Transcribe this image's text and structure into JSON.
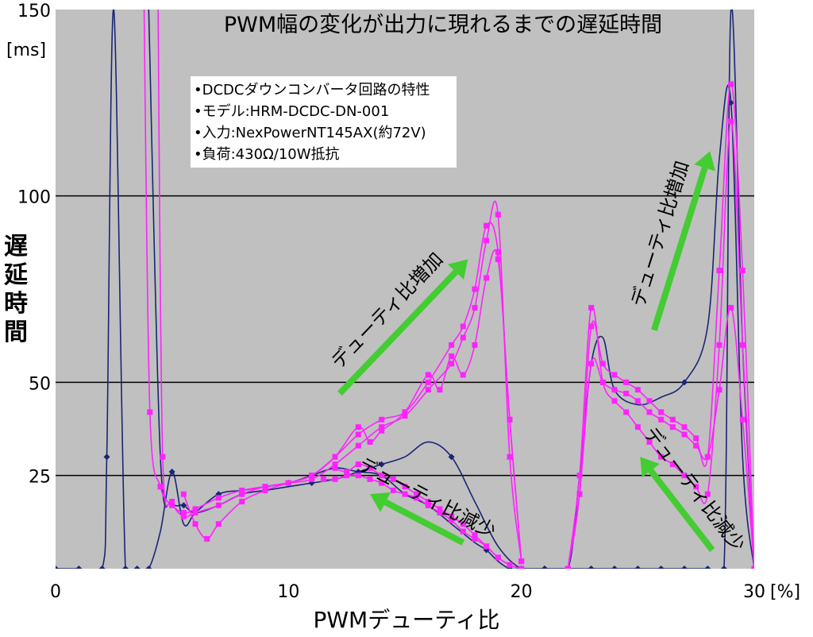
{
  "chart_data": {
    "type": "line",
    "title": "PWM幅の変化が出力に現れるまでの遅延時間",
    "xlabel": "PWMデューティ比",
    "ylabel": "遅延時間",
    "x_unit": "[%]",
    "y_unit": "[ms]",
    "xlim": [
      0,
      30
    ],
    "ylim": [
      0,
      150
    ],
    "x_ticks": [
      0,
      10,
      20,
      30
    ],
    "y_ticks": [
      25,
      50,
      100,
      150
    ],
    "grid": "horizontal",
    "background": "#c0c0c0",
    "colors": {
      "navy": "#1a2575",
      "magenta": "#ff22ff",
      "arrow": "#44cc33"
    },
    "info_box": [
      "•DCDCダウンコンバータ回路の特性",
      "•モデル:HRM-DCDC-DN-001",
      "•入力:NexPowerNT145AX(約72V)",
      "•負荷:430Ω/10W抵抗"
    ],
    "annotations": [
      {
        "text": "デューティ比増加",
        "x_from": 12.2,
        "y_from": 47,
        "x_to": 17.7,
        "y_to": 83
      },
      {
        "text": "デューティ比減少",
        "x_from": 17.5,
        "y_from": 7,
        "x_to": 13.5,
        "y_to": 20
      },
      {
        "text": "デューティ比増加",
        "x_from": 25.7,
        "y_from": 64,
        "x_to": 28.1,
        "y_to": 112
      },
      {
        "text": "デューティ比減少",
        "x_from": 28.2,
        "y_from": 5,
        "x_to": 25.1,
        "y_to": 30
      }
    ],
    "series": [
      {
        "color": "#1a2575",
        "markers": false,
        "x": [
          0,
          1,
          2,
          2.2,
          2.5,
          3,
          3.5,
          4,
          4.5,
          5,
          5.5,
          6,
          7,
          8,
          9,
          10,
          11,
          12,
          13,
          14,
          15,
          16,
          17,
          18,
          18.5,
          19,
          19.5,
          20,
          21,
          22,
          23,
          24,
          25,
          26,
          27,
          28,
          28.7,
          29,
          29.5,
          30
        ],
        "y": [
          0,
          0,
          0,
          30,
          150,
          0,
          0,
          0,
          10,
          26,
          12,
          15,
          20,
          21,
          22,
          23,
          25,
          27,
          26,
          25,
          20,
          17,
          12,
          7,
          5,
          2,
          0,
          0,
          0,
          0,
          0,
          0,
          0,
          0,
          0,
          0,
          0,
          150,
          60,
          0
        ]
      },
      {
        "color": "#1a2575",
        "markers": false,
        "x": [
          4,
          4.5,
          5,
          5.5,
          6,
          7,
          8,
          9,
          10,
          11,
          12,
          13,
          14,
          15,
          16,
          17,
          18,
          19,
          20,
          21,
          22,
          22.5,
          23,
          23.5,
          24,
          25,
          26,
          27,
          28,
          28.5,
          29,
          29.5,
          30
        ],
        "y": [
          150,
          30,
          18,
          17,
          15,
          17,
          20,
          21,
          22,
          23,
          24,
          26,
          28,
          30,
          34,
          30,
          18,
          6,
          0,
          0,
          0,
          25,
          55,
          62,
          48,
          44,
          46,
          50,
          65,
          110,
          125,
          30,
          0
        ]
      },
      {
        "color": "#ff22ff",
        "markers": true,
        "x": [
          3.8,
          4.05,
          4.5,
          5,
          5.5,
          6,
          7,
          8,
          9,
          10,
          11,
          12,
          13,
          14,
          15,
          16,
          17,
          17.5,
          18,
          18.5,
          19,
          19.5,
          20
        ],
        "y": [
          150,
          42,
          22,
          17,
          15,
          16,
          19,
          21,
          22,
          23,
          25,
          30,
          36,
          40,
          42,
          50,
          60,
          65,
          75,
          92,
          85,
          40,
          2
        ]
      },
      {
        "color": "#ff22ff",
        "markers": true,
        "x": [
          4.4,
          4.6,
          5,
          5.5,
          6,
          7,
          8,
          9,
          10,
          11,
          12,
          13,
          14,
          15,
          16,
          17,
          17.5,
          18,
          18.5,
          19,
          19.5,
          20
        ],
        "y": [
          150,
          30,
          18,
          14,
          15,
          17,
          20,
          22,
          23,
          24,
          28,
          33,
          38,
          41,
          48,
          55,
          62,
          70,
          88,
          95,
          30,
          2
        ]
      },
      {
        "color": "#ff22ff",
        "markers": true,
        "x": [
          5.5,
          6,
          6.5,
          7,
          8,
          9,
          10,
          11,
          12,
          13,
          13.5,
          14,
          15,
          16,
          16.5,
          17,
          17.5,
          18,
          18.5,
          19,
          19.5,
          20
        ],
        "y": [
          20,
          12,
          8,
          12,
          18,
          21,
          23,
          25,
          30,
          38,
          34,
          37,
          42,
          52,
          48,
          57,
          52,
          60,
          78,
          83,
          40,
          2
        ]
      },
      {
        "color": "#ff22ff",
        "markers": true,
        "x": [
          12,
          12.5,
          13,
          13.5,
          14,
          14.5,
          15,
          15.5,
          16,
          16.5,
          17,
          17.5,
          18,
          18.5,
          19,
          19.5,
          20
        ],
        "y": [
          27,
          26,
          28,
          27,
          25,
          24,
          22,
          20,
          18,
          16,
          14,
          12,
          9,
          6,
          3,
          1,
          0
        ]
      },
      {
        "color": "#ff22ff",
        "markers": true,
        "x": [
          11.5,
          12,
          12.5,
          13,
          13.5,
          14,
          14.5,
          15,
          15.5,
          16,
          16.5,
          17,
          17.5,
          18,
          18.5,
          19,
          19.5,
          20
        ],
        "y": [
          24,
          24,
          25,
          25,
          24,
          23,
          21,
          20,
          19,
          17,
          15,
          13,
          10,
          8,
          6,
          3,
          1,
          0
        ]
      },
      {
        "color": "#ff22ff",
        "markers": true,
        "x": [
          22,
          22.5,
          23,
          23.5,
          24,
          24.5,
          25,
          25.5,
          26,
          26.5,
          27,
          27.5,
          28,
          28.5,
          29,
          29.5,
          30
        ],
        "y": [
          0,
          25,
          70,
          50,
          45,
          42,
          38,
          34,
          30,
          28,
          25,
          22,
          20,
          60,
          120,
          60,
          0
        ]
      },
      {
        "color": "#ff22ff",
        "markers": true,
        "x": [
          22,
          22.5,
          23,
          23.5,
          24,
          24.5,
          25,
          25.5,
          26,
          26.5,
          27,
          27.5,
          28,
          28.5,
          29,
          29.5,
          30
        ],
        "y": [
          0,
          20,
          65,
          55,
          52,
          50,
          48,
          45,
          42,
          40,
          38,
          35,
          30,
          80,
          130,
          80,
          0
        ]
      },
      {
        "color": "#ff22ff",
        "markers": true,
        "x": [
          22,
          22.5,
          23,
          23.5,
          24,
          24.5,
          25,
          25.5,
          26,
          26.5,
          27,
          27.5,
          28,
          28.5,
          29,
          29.5,
          30
        ],
        "y": [
          0,
          20,
          55,
          50,
          48,
          47,
          45,
          42,
          40,
          38,
          36,
          33,
          30,
          48,
          70,
          40,
          0
        ]
      }
    ]
  }
}
